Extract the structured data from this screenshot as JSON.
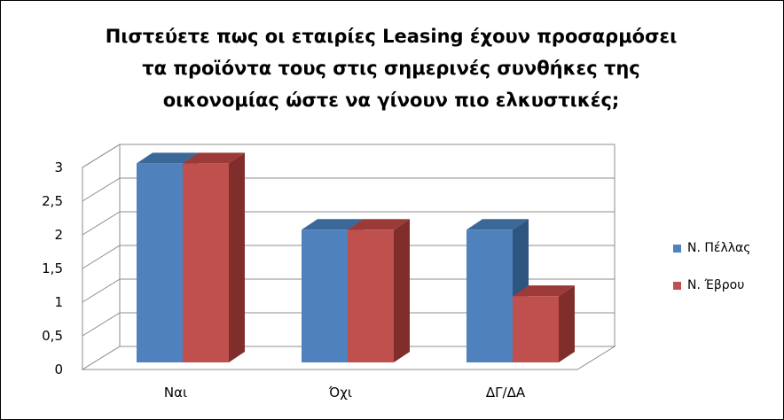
{
  "chart_data": {
    "type": "bar",
    "title_lines": [
      "Πιστεύετε πως οι εταιρίες Leasing  έχουν προσαρμόσει",
      "τα προϊόντα τους στις σημερινές συνθήκες της",
      "οικονομίας ώστε να γίνουν πιο ελκυστικές;"
    ],
    "categories": [
      "Ναι",
      "Όχι",
      "ΔΓ/ΔΑ"
    ],
    "series": [
      {
        "name": "Ν. Πέλλας",
        "values": [
          3,
          2,
          2
        ],
        "color": "#4F81BD",
        "top_color": "#3A6899",
        "side_color": "#2E5480"
      },
      {
        "name": "Ν. Έβρου",
        "values": [
          3,
          2,
          1
        ],
        "color": "#C0504D",
        "top_color": "#9C3A38",
        "side_color": "#7F2E2C"
      }
    ],
    "ylim": [
      0,
      3
    ],
    "yticks": [
      "0",
      "0,5",
      "1",
      "1,5",
      "2",
      "2,5",
      "3"
    ],
    "grid": true,
    "legend_position": "right",
    "projection": "3d"
  }
}
